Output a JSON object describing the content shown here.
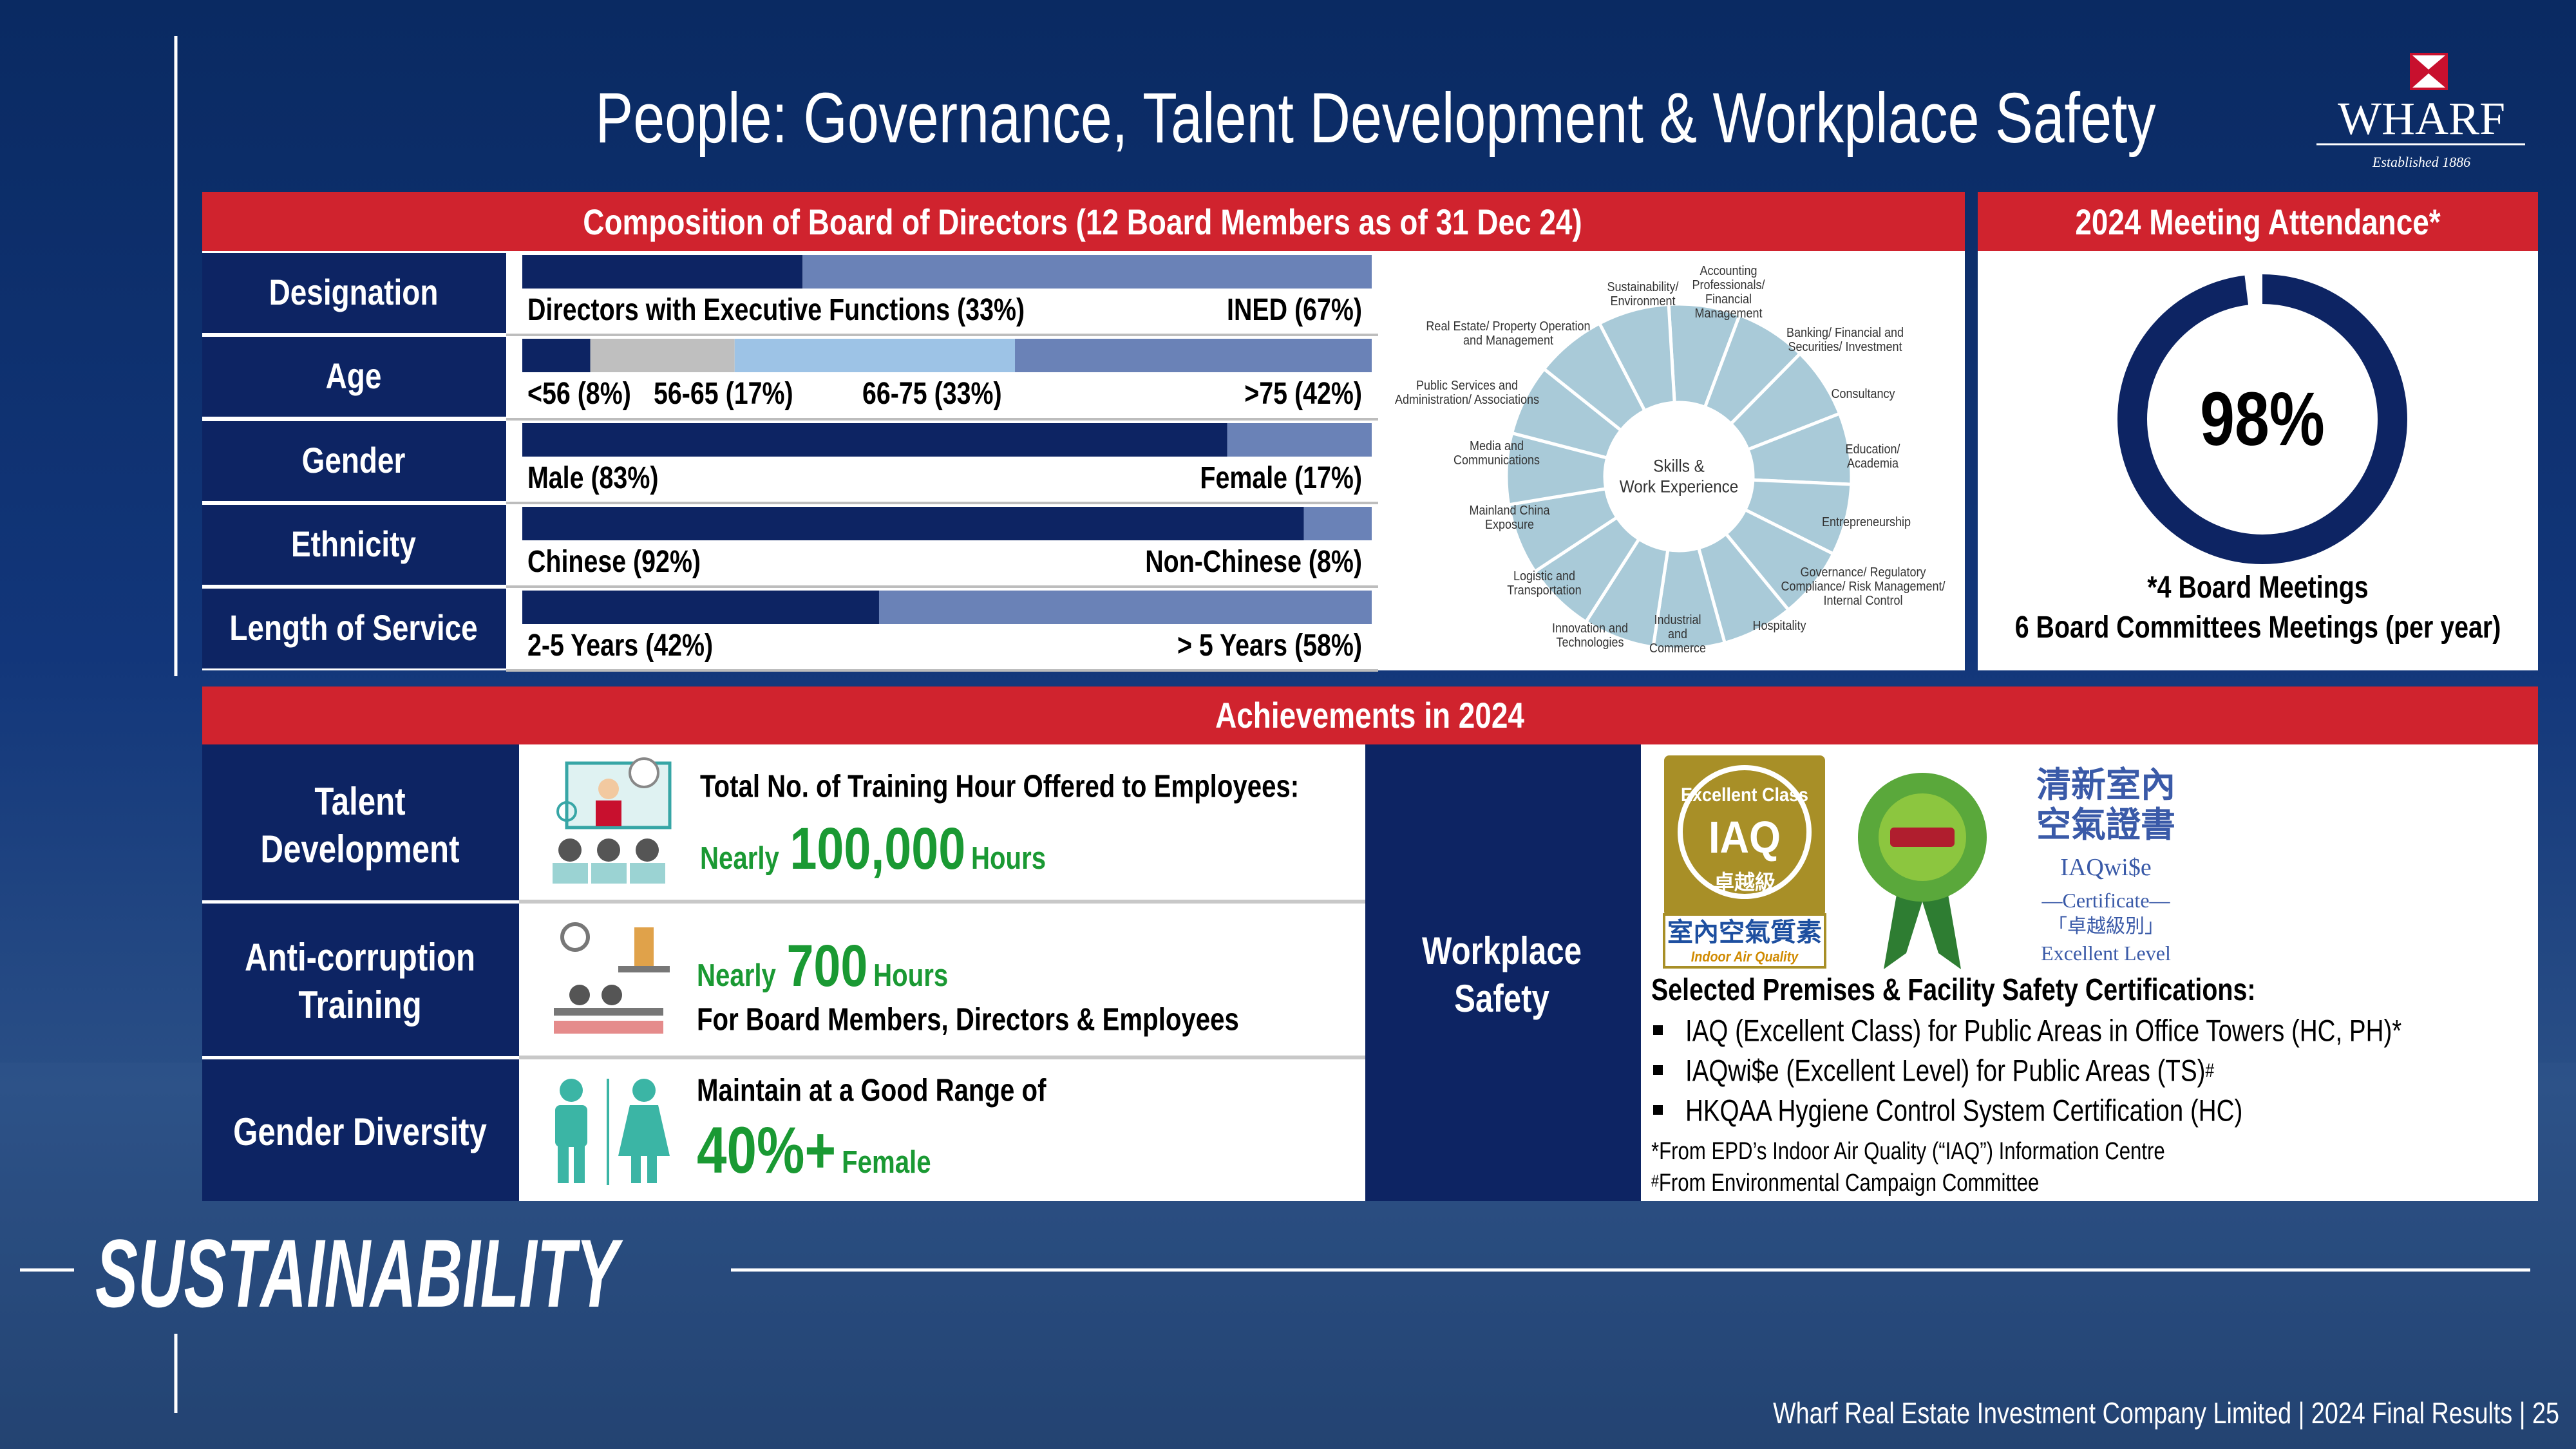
{
  "header": {
    "title": "People: Governance, Talent Development & Workplace Safety",
    "logo": {
      "name": "WHARF",
      "tagline": "Established 1886"
    }
  },
  "board": {
    "title": "Composition of Board of Directors (12 Board Members as of 31 Dec 24)",
    "rows": [
      {
        "label": "Designation",
        "segments": [
          {
            "label": "Directors with Executive Functions (33%)",
            "value": 33,
            "color": "#0d2463"
          },
          {
            "label": "INED (67%)",
            "value": 67,
            "color": "#6a82b7"
          }
        ]
      },
      {
        "label": "Age",
        "segments": [
          {
            "label": "<56 (8%)",
            "value": 8,
            "color": "#0d2463"
          },
          {
            "label": "56-65 (17%)",
            "value": 17,
            "color": "#bfbfbf"
          },
          {
            "label": "66-75 (33%)",
            "value": 33,
            "color": "#9dc3e6"
          },
          {
            "label": ">75 (42%)",
            "value": 42,
            "color": "#6a82b7"
          }
        ]
      },
      {
        "label": "Gender",
        "segments": [
          {
            "label": "Male (83%)",
            "value": 83,
            "color": "#0d2463"
          },
          {
            "label": "Female (17%)",
            "value": 17,
            "color": "#6a82b7"
          }
        ]
      },
      {
        "label": "Ethnicity",
        "segments": [
          {
            "label": "Chinese (92%)",
            "value": 92,
            "color": "#0d2463"
          },
          {
            "label": "Non-Chinese (8%)",
            "value": 8,
            "color": "#6a82b7"
          }
        ]
      },
      {
        "label": "Length of Service",
        "segments": [
          {
            "label": "2-5 Years (42%)",
            "value": 42,
            "color": "#0d2463"
          },
          {
            "label": "> 5 Years (58%)",
            "value": 58,
            "color": "#6a82b7"
          }
        ]
      }
    ],
    "skills_wheel": {
      "center": [
        "Skills &",
        "Work Experience"
      ],
      "skills": [
        [
          "Accounting",
          "Professionals/",
          "Financial",
          "Management"
        ],
        [
          "Banking/ Financial and",
          "Securities/ Investment"
        ],
        [
          "Consultancy"
        ],
        [
          "Education/",
          "Academia"
        ],
        [
          "Entrepreneurship"
        ],
        [
          "Governance/ Regulatory",
          "Compliance/ Risk Management/",
          "Internal Control"
        ],
        [
          "Hospitality"
        ],
        [
          "Industrial",
          "and",
          "Commerce"
        ],
        [
          "Innovation and",
          "Technologies"
        ],
        [
          "Logistic and",
          "Transportation"
        ],
        [
          "Mainland China",
          "Exposure"
        ],
        [
          "Media and",
          "Communications"
        ],
        [
          "Public Services and",
          "Administration/ Associations"
        ],
        [
          "Real Estate/ Property Operation",
          "and Management"
        ],
        [
          "Sustainability/",
          "Environment"
        ]
      ]
    }
  },
  "attendance": {
    "title": "2024 Meeting Attendance*",
    "rate": {
      "value": 98,
      "label": "98%"
    },
    "notes": [
      "*4 Board Meetings",
      "6 Board Committees Meetings (per year)"
    ]
  },
  "achievements": {
    "title": "Achievements in 2024",
    "talent": {
      "label": [
        "Talent",
        "Development"
      ],
      "heading": "Total No. of Training Hour Offered to Employees:",
      "prefix": "Nearly",
      "figure": "100,000",
      "unit": "Hours"
    },
    "anti_corruption": {
      "label": [
        "Anti-corruption",
        "Training"
      ],
      "prefix": "Nearly",
      "figure": "700",
      "unit": "Hours",
      "detail": "For Board Members, Directors & Employees"
    },
    "gender": {
      "label": [
        "Gender Diversity"
      ],
      "heading": "Maintain at a Good Range of",
      "figure": "40%+",
      "unit": "Female"
    },
    "safety": {
      "label": [
        "Workplace",
        "Safety"
      ],
      "logos": {
        "iaq": {
          "ring": "Excellent Class",
          "mark": "IAQ",
          "grade": "卓越級",
          "chinese": "室內空氣質素",
          "english": "Indoor Air Quality"
        },
        "iaqwise": {
          "chinese": [
            "清新室內",
            "空氣證書"
          ],
          "name": "IAQwi$e",
          "certificate": "—Certificate—",
          "grade": "「卓越級別」",
          "level": "Excellent Level"
        }
      },
      "heading": "Selected Premises & Facility Safety Certifications:",
      "bullets": [
        {
          "text": "IAQ (Excellent Class) for Public Areas in Office Towers (HC, PH)*"
        },
        {
          "text": "IAQwi$e (Excellent Level) for Public Areas (TS)",
          "sup": "#"
        },
        {
          "text": "HKQAA Hygiene Control System Certification (HC)"
        }
      ],
      "notes": [
        {
          "text": "*From EPD’s Indoor Air Quality (“IAQ”) Information Centre"
        },
        {
          "sup": "#",
          "text": "From Environmental Campaign Committee"
        }
      ]
    }
  },
  "footer": {
    "section": "SUSTAINABILITY",
    "source": "Wharf Real Estate Investment Company Limited | 2024 Final Results | 25"
  }
}
